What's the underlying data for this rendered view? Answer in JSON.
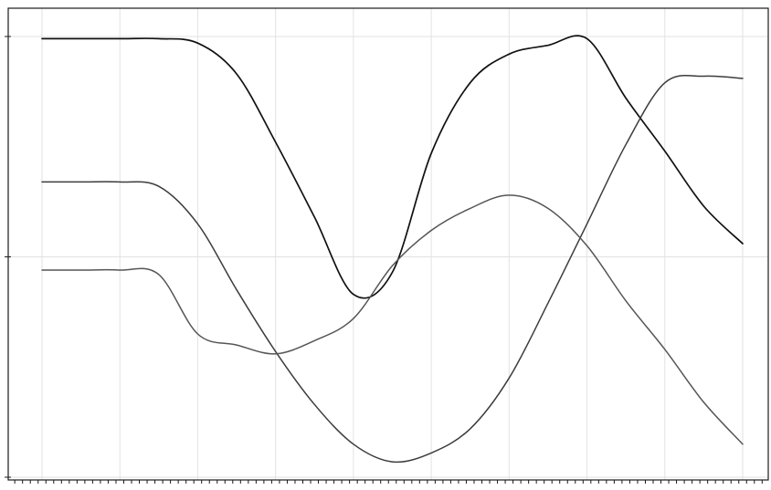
{
  "chart_data": {
    "type": "line",
    "title": "",
    "xlabel": "",
    "ylabel": "",
    "xlim": [
      0,
      9
    ],
    "ylim": [
      -1,
      1
    ],
    "grid": true,
    "legend": "none",
    "x": [
      0,
      0.5,
      1,
      1.5,
      2,
      2.5,
      3,
      3.5,
      4,
      4.5,
      5,
      5.5,
      6,
      6.5,
      7,
      7.5,
      8,
      8.5,
      9
    ],
    "series": [
      {
        "color": "#111111",
        "values": [
          0.99,
          0.99,
          0.99,
          0.99,
          0.97,
          0.83,
          0.52,
          0.18,
          -0.17,
          -0.07,
          0.47,
          0.79,
          0.92,
          0.96,
          0.99,
          0.72,
          0.48,
          0.23,
          0.06
        ]
      },
      {
        "color": "#3c3c3c",
        "values": [
          0.34,
          0.34,
          0.34,
          0.32,
          0.15,
          -0.15,
          -0.43,
          -0.67,
          -0.85,
          -0.93,
          -0.89,
          -0.78,
          -0.55,
          -0.21,
          0.15,
          0.51,
          0.79,
          0.82,
          0.81
        ]
      },
      {
        "color": "#555555",
        "values": [
          -0.06,
          -0.06,
          -0.06,
          -0.08,
          -0.35,
          -0.4,
          -0.44,
          -0.38,
          -0.28,
          -0.04,
          0.12,
          0.22,
          0.28,
          0.22,
          0.05,
          -0.2,
          -0.42,
          -0.66,
          -0.85
        ]
      }
    ]
  }
}
